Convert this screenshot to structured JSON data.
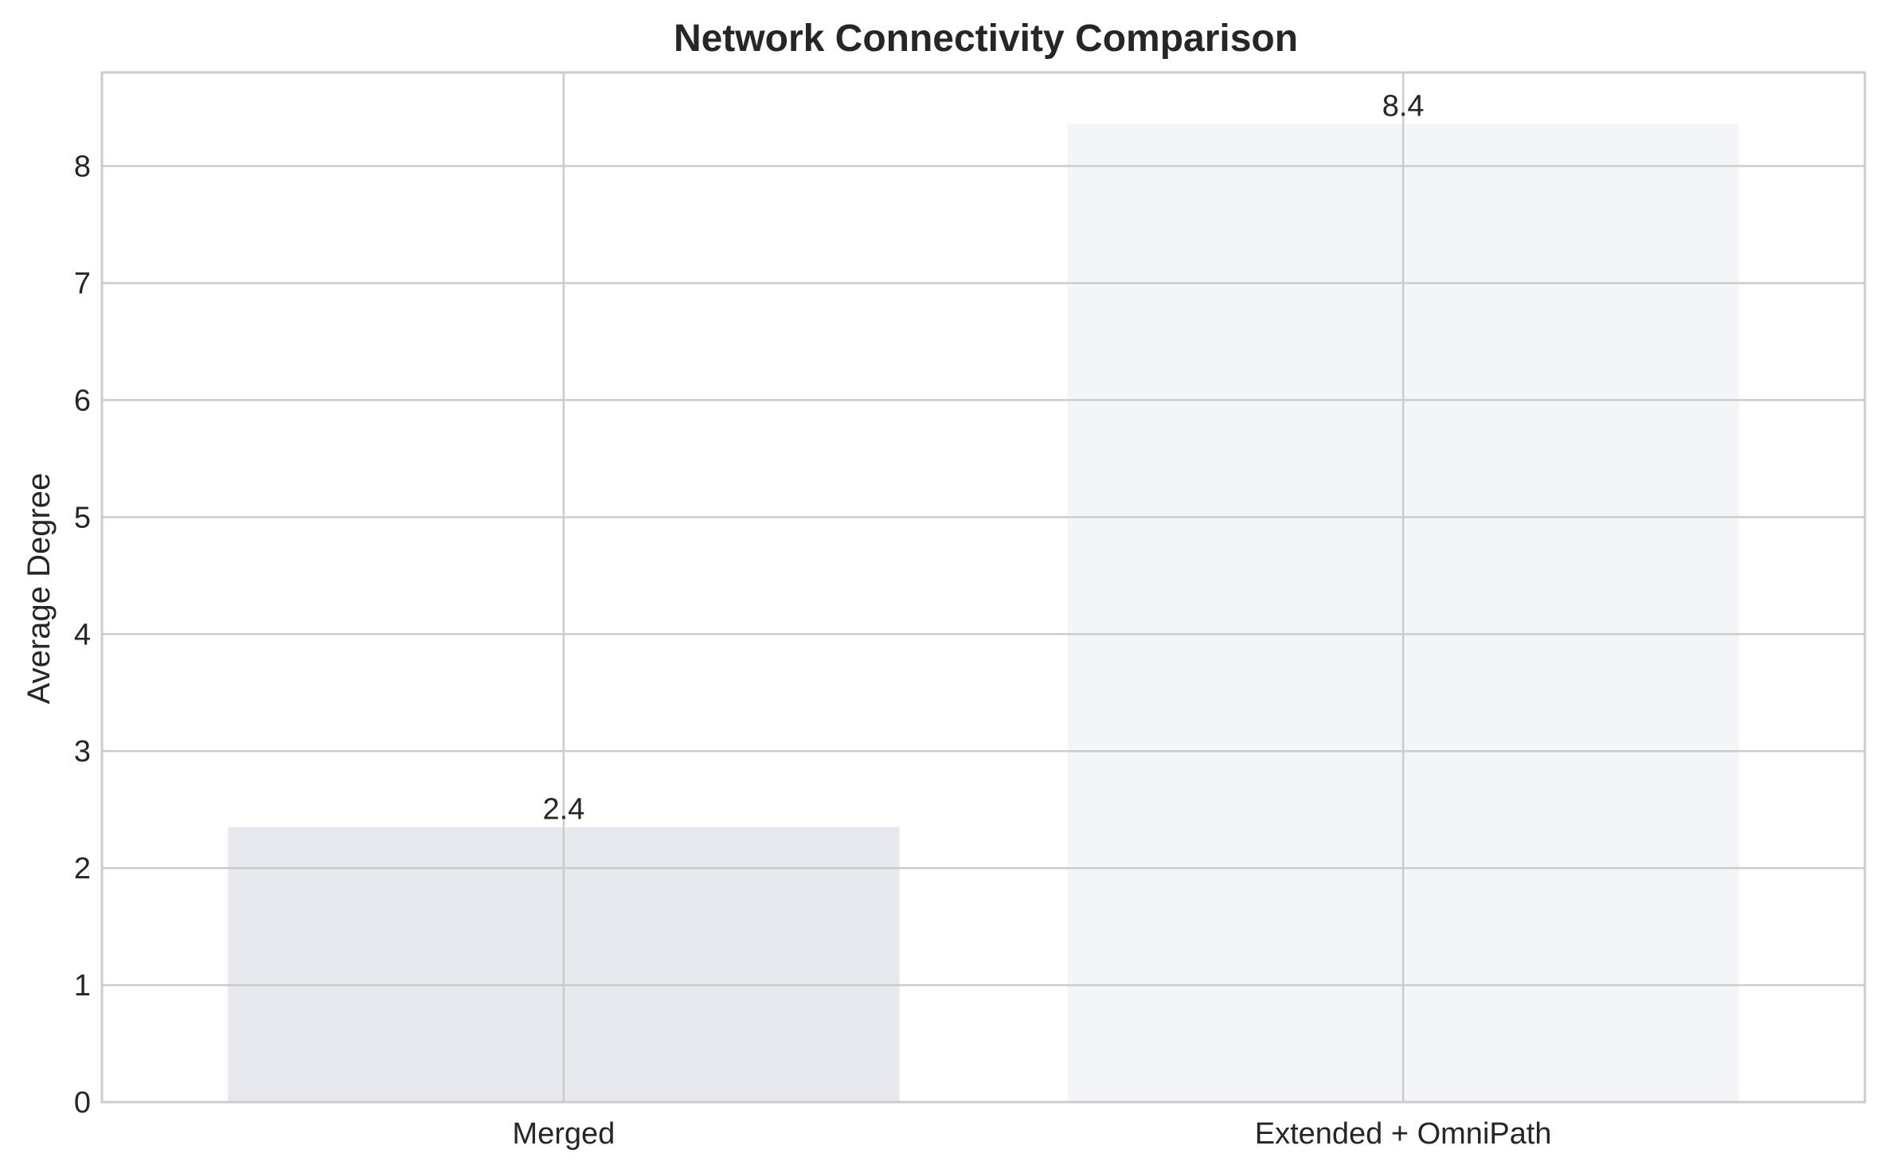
{
  "chart_data": {
    "type": "bar",
    "title": "Network Connectivity Comparison",
    "xlabel": "",
    "ylabel": "Average Degree",
    "categories": [
      "Merged",
      "Extended + OmniPath"
    ],
    "values": [
      2.35,
      8.36
    ],
    "data_labels": [
      "2.4",
      "8.4"
    ],
    "bar_colors": [
      "#e8e9ee",
      "#f4f5f8"
    ],
    "ylim": [
      0,
      8.8
    ],
    "yticks": [
      0,
      1,
      2,
      3,
      4,
      5,
      6,
      7,
      8
    ],
    "grid": true,
    "legend": "none"
  }
}
